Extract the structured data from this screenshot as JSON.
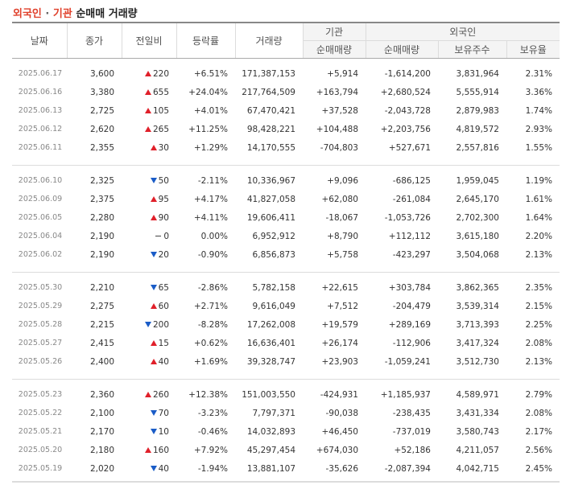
{
  "title": {
    "part1": "외국인",
    "dot": " · ",
    "part2": "기관",
    "part3": " 순매매 거래량"
  },
  "headers": {
    "date": "날짜",
    "close": "종가",
    "change": "전일비",
    "rate": "등락률",
    "volume": "거래량",
    "inst_group": "기관",
    "inst_net": "순매매량",
    "foreign_group": "외국인",
    "foreign_net": "순매매량",
    "foreign_hold": "보유주수",
    "foreign_ratio": "보유율"
  },
  "colors": {
    "up": "#e0202a",
    "down": "#1a5cc7",
    "accent": "#e0412c"
  },
  "groups": [
    {
      "rows": [
        {
          "date": "2025.06.17",
          "close": "3,600",
          "dir": "up",
          "change": "220",
          "rate": "+6.51%",
          "volume": "171,387,153",
          "inst": "+5,914",
          "foreign": "-1,614,200",
          "hold": "3,831,964",
          "ratio": "2.31%"
        },
        {
          "date": "2025.06.16",
          "close": "3,380",
          "dir": "up",
          "change": "655",
          "rate": "+24.04%",
          "volume": "217,764,509",
          "inst": "+163,794",
          "foreign": "+2,680,524",
          "hold": "5,555,914",
          "ratio": "3.36%"
        },
        {
          "date": "2025.06.13",
          "close": "2,725",
          "dir": "up",
          "change": "105",
          "rate": "+4.01%",
          "volume": "67,470,421",
          "inst": "+37,528",
          "foreign": "-2,043,728",
          "hold": "2,879,983",
          "ratio": "1.74%"
        },
        {
          "date": "2025.06.12",
          "close": "2,620",
          "dir": "up",
          "change": "265",
          "rate": "+11.25%",
          "volume": "98,428,221",
          "inst": "+104,488",
          "foreign": "+2,203,756",
          "hold": "4,819,572",
          "ratio": "2.93%"
        },
        {
          "date": "2025.06.11",
          "close": "2,355",
          "dir": "up",
          "change": "30",
          "rate": "+1.29%",
          "volume": "14,170,555",
          "inst": "-704,803",
          "foreign": "+527,671",
          "hold": "2,557,816",
          "ratio": "1.55%"
        }
      ]
    },
    {
      "rows": [
        {
          "date": "2025.06.10",
          "close": "2,325",
          "dir": "down",
          "change": "50",
          "rate": "-2.11%",
          "volume": "10,336,967",
          "inst": "+9,096",
          "foreign": "-686,125",
          "hold": "1,959,045",
          "ratio": "1.19%"
        },
        {
          "date": "2025.06.09",
          "close": "2,375",
          "dir": "up",
          "change": "95",
          "rate": "+4.17%",
          "volume": "41,827,058",
          "inst": "+62,080",
          "foreign": "-261,084",
          "hold": "2,645,170",
          "ratio": "1.61%"
        },
        {
          "date": "2025.06.05",
          "close": "2,280",
          "dir": "up",
          "change": "90",
          "rate": "+4.11%",
          "volume": "19,606,411",
          "inst": "-18,067",
          "foreign": "-1,053,726",
          "hold": "2,702,300",
          "ratio": "1.64%"
        },
        {
          "date": "2025.06.04",
          "close": "2,190",
          "dir": "flat",
          "change": "0",
          "rate": "0.00%",
          "volume": "6,952,912",
          "inst": "+8,790",
          "foreign": "+112,112",
          "hold": "3,615,180",
          "ratio": "2.20%"
        },
        {
          "date": "2025.06.02",
          "close": "2,190",
          "dir": "down",
          "change": "20",
          "rate": "-0.90%",
          "volume": "6,856,873",
          "inst": "+5,758",
          "foreign": "-423,297",
          "hold": "3,504,068",
          "ratio": "2.13%"
        }
      ]
    },
    {
      "rows": [
        {
          "date": "2025.05.30",
          "close": "2,210",
          "dir": "down",
          "change": "65",
          "rate": "-2.86%",
          "volume": "5,782,158",
          "inst": "+22,615",
          "foreign": "+303,784",
          "hold": "3,862,365",
          "ratio": "2.35%"
        },
        {
          "date": "2025.05.29",
          "close": "2,275",
          "dir": "up",
          "change": "60",
          "rate": "+2.71%",
          "volume": "9,616,049",
          "inst": "+7,512",
          "foreign": "-204,479",
          "hold": "3,539,314",
          "ratio": "2.15%"
        },
        {
          "date": "2025.05.28",
          "close": "2,215",
          "dir": "down",
          "change": "200",
          "rate": "-8.28%",
          "volume": "17,262,008",
          "inst": "+19,579",
          "foreign": "+289,169",
          "hold": "3,713,393",
          "ratio": "2.25%"
        },
        {
          "date": "2025.05.27",
          "close": "2,415",
          "dir": "up",
          "change": "15",
          "rate": "+0.62%",
          "volume": "16,636,401",
          "inst": "+26,174",
          "foreign": "-112,906",
          "hold": "3,417,324",
          "ratio": "2.08%"
        },
        {
          "date": "2025.05.26",
          "close": "2,400",
          "dir": "up",
          "change": "40",
          "rate": "+1.69%",
          "volume": "39,328,747",
          "inst": "+23,903",
          "foreign": "-1,059,241",
          "hold": "3,512,730",
          "ratio": "2.13%"
        }
      ]
    },
    {
      "rows": [
        {
          "date": "2025.05.23",
          "close": "2,360",
          "dir": "up",
          "change": "260",
          "rate": "+12.38%",
          "volume": "151,003,550",
          "inst": "-424,931",
          "foreign": "+1,185,937",
          "hold": "4,589,971",
          "ratio": "2.79%"
        },
        {
          "date": "2025.05.22",
          "close": "2,100",
          "dir": "down",
          "change": "70",
          "rate": "-3.23%",
          "volume": "7,797,371",
          "inst": "-90,038",
          "foreign": "-238,435",
          "hold": "3,431,334",
          "ratio": "2.08%"
        },
        {
          "date": "2025.05.21",
          "close": "2,170",
          "dir": "down",
          "change": "10",
          "rate": "-0.46%",
          "volume": "14,032,893",
          "inst": "+46,450",
          "foreign": "-737,019",
          "hold": "3,580,743",
          "ratio": "2.17%"
        },
        {
          "date": "2025.05.20",
          "close": "2,180",
          "dir": "up",
          "change": "160",
          "rate": "+7.92%",
          "volume": "45,297,454",
          "inst": "+674,030",
          "foreign": "+52,186",
          "hold": "4,211,057",
          "ratio": "2.56%"
        },
        {
          "date": "2025.05.19",
          "close": "2,020",
          "dir": "down",
          "change": "40",
          "rate": "-1.94%",
          "volume": "13,881,107",
          "inst": "-35,626",
          "foreign": "-2,087,394",
          "hold": "4,042,715",
          "ratio": "2.45%"
        }
      ]
    }
  ]
}
